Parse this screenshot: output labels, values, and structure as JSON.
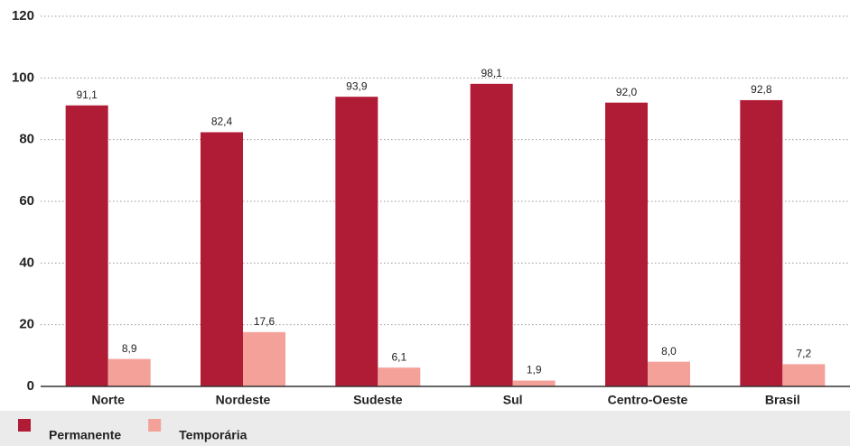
{
  "chart_data": {
    "type": "bar",
    "categories": [
      "Norte",
      "Nordeste",
      "Sudeste",
      "Sul",
      "Centro-Oeste",
      "Brasil"
    ],
    "series": [
      {
        "name": "Permanente",
        "color": "#b01c36",
        "values": [
          91.1,
          82.4,
          93.9,
          98.1,
          92.0,
          92.8
        ],
        "value_labels": [
          "91,1",
          "82,4",
          "93,9",
          "98,1",
          "92,0",
          "92,8"
        ]
      },
      {
        "name": "Temporária",
        "color": "#f4a19a",
        "values": [
          8.9,
          17.6,
          6.1,
          1.9,
          8.0,
          7.2
        ],
        "value_labels": [
          "8,9",
          "17,6",
          "6,1",
          "1,9",
          "8,0",
          "7,2"
        ]
      }
    ],
    "ylim": [
      0,
      120
    ],
    "yticks": [
      0,
      20,
      40,
      60,
      80,
      100,
      120
    ],
    "grid": true,
    "legend": "bottom"
  }
}
